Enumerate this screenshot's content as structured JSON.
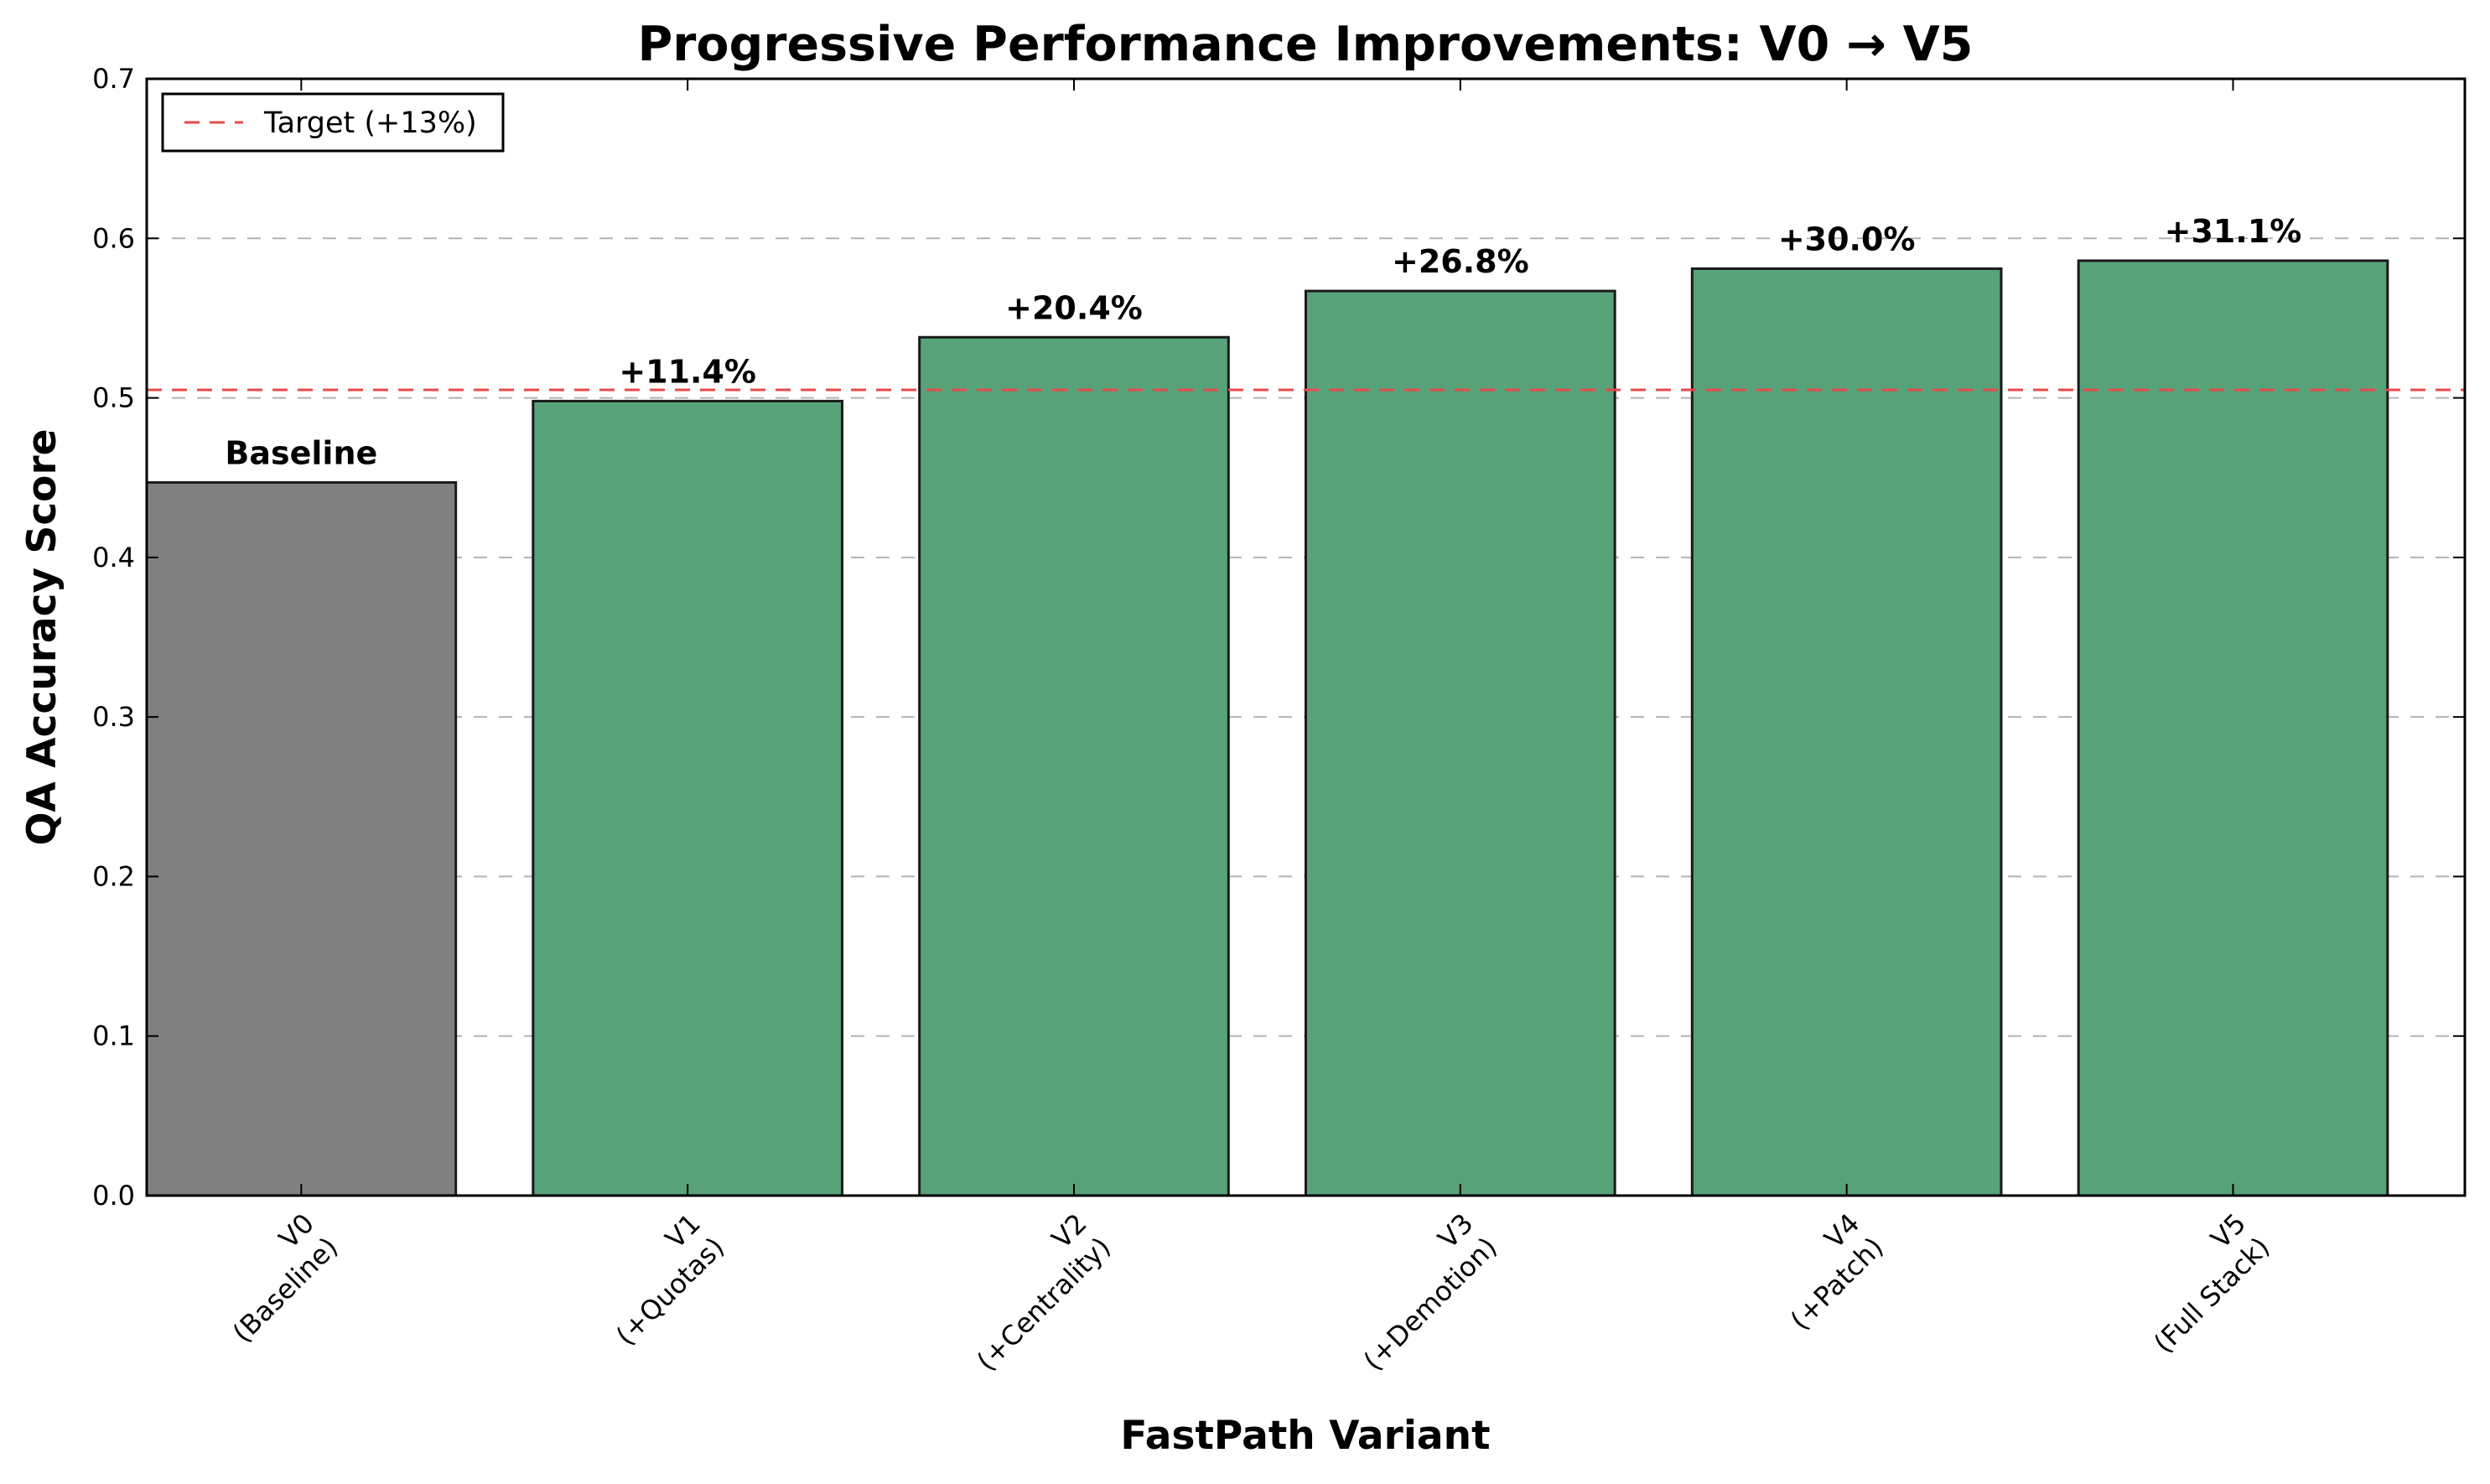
{
  "chart_data": {
    "type": "bar",
    "title": "Progressive Performance Improvements: V0 → V5",
    "xlabel": "FastPath Variant",
    "ylabel": "QA Accuracy Score",
    "ylim": [
      0,
      0.7
    ],
    "yticks": [
      "0.0",
      "0.1",
      "0.2",
      "0.3",
      "0.4",
      "0.5",
      "0.6",
      "0.7"
    ],
    "grid": "y-dashed",
    "legend_placement": "top-left",
    "categories": [
      [
        "V0",
        "(Baseline)"
      ],
      [
        "V1",
        "(+Quotas)"
      ],
      [
        "V2",
        "(+Centrality)"
      ],
      [
        "V3",
        "(+Demotion)"
      ],
      [
        "V4",
        "(+Patch)"
      ],
      [
        "V5",
        "(Full Stack)"
      ]
    ],
    "values": [
      0.447,
      0.498,
      0.538,
      0.567,
      0.581,
      0.586
    ],
    "bar_labels": [
      "Baseline",
      "+11.4%",
      "+20.4%",
      "+26.8%",
      "+30.0%",
      "+31.1%"
    ],
    "bar_colors": [
      "#808080",
      "#57a278",
      "#57a278",
      "#57a278",
      "#57a278",
      "#57a278"
    ],
    "reference_line": {
      "label": "Target (+13%)",
      "value": 0.505,
      "color": "#e84a4a"
    }
  }
}
